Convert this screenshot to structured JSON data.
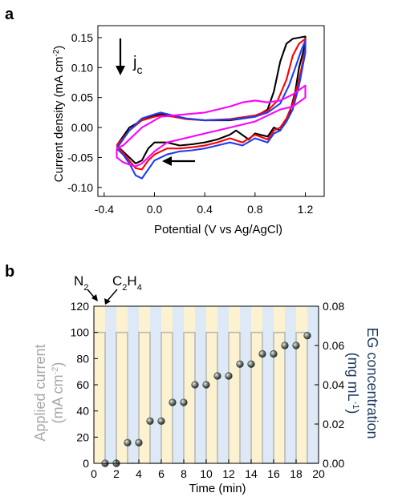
{
  "chart_data": [
    {
      "panel_label": "a",
      "type": "line",
      "xlabel": "Potential (V vs Ag/AgCl)",
      "ylabel": "Current density (mA cm",
      "ylabel_sup": "-2",
      "ylabel_close": ")",
      "xlim": [
        -0.45,
        1.35
      ],
      "ylim": [
        -0.115,
        0.17
      ],
      "xticks": [
        -0.4,
        0.0,
        0.4,
        0.8,
        1.2
      ],
      "xtick_labels": [
        "-0.4",
        "0.0",
        "0.4",
        "0.8",
        "1.2"
      ],
      "yticks": [
        -0.1,
        -0.05,
        0.0,
        0.05,
        0.1,
        0.15
      ],
      "ytick_labels": [
        "-0.10",
        "-0.05",
        "0.00",
        "0.05",
        "0.10",
        "0.15"
      ],
      "annotation_jc": "j",
      "annotation_jc_sub": "c",
      "series": [
        {
          "color": "#000000",
          "points": [
            [
              -0.3,
              -0.03
            ],
            [
              -0.25,
              -0.015
            ],
            [
              -0.2,
              0.0
            ],
            [
              -0.1,
              0.012
            ],
            [
              0.0,
              0.02
            ],
            [
              0.05,
              0.022
            ],
            [
              0.15,
              0.02
            ],
            [
              0.25,
              0.015
            ],
            [
              0.4,
              0.012
            ],
            [
              0.6,
              0.012
            ],
            [
              0.8,
              0.018
            ],
            [
              0.9,
              0.03
            ],
            [
              0.95,
              0.06
            ],
            [
              1.0,
              0.11
            ],
            [
              1.05,
              0.14
            ],
            [
              1.1,
              0.148
            ],
            [
              1.2,
              0.152
            ],
            [
              1.2,
              0.14
            ],
            [
              1.15,
              0.1
            ],
            [
              1.12,
              0.06
            ],
            [
              1.07,
              0.02
            ],
            [
              1.0,
              -0.005
            ],
            [
              0.95,
              0.0
            ],
            [
              0.9,
              -0.015
            ],
            [
              0.8,
              -0.01
            ],
            [
              0.75,
              -0.02
            ],
            [
              0.65,
              -0.005
            ],
            [
              0.6,
              -0.012
            ],
            [
              0.5,
              -0.02
            ],
            [
              0.4,
              -0.025
            ],
            [
              0.3,
              -0.028
            ],
            [
              0.2,
              -0.03
            ],
            [
              0.1,
              -0.025
            ],
            [
              0.0,
              -0.025
            ],
            [
              -0.05,
              -0.035
            ],
            [
              -0.1,
              -0.055
            ],
            [
              -0.15,
              -0.06
            ],
            [
              -0.2,
              -0.05
            ],
            [
              -0.25,
              -0.04
            ],
            [
              -0.3,
              -0.03
            ]
          ]
        },
        {
          "color": "#ff0000",
          "points": [
            [
              -0.3,
              -0.03
            ],
            [
              -0.25,
              -0.018
            ],
            [
              -0.2,
              -0.005
            ],
            [
              -0.1,
              0.012
            ],
            [
              0.0,
              0.018
            ],
            [
              0.05,
              0.02
            ],
            [
              0.15,
              0.018
            ],
            [
              0.25,
              0.014
            ],
            [
              0.4,
              0.012
            ],
            [
              0.6,
              0.014
            ],
            [
              0.8,
              0.02
            ],
            [
              0.9,
              0.028
            ],
            [
              0.98,
              0.045
            ],
            [
              1.05,
              0.08
            ],
            [
              1.1,
              0.12
            ],
            [
              1.15,
              0.14
            ],
            [
              1.2,
              0.148
            ],
            [
              1.2,
              0.13
            ],
            [
              1.15,
              0.08
            ],
            [
              1.1,
              0.04
            ],
            [
              1.05,
              0.015
            ],
            [
              1.0,
              0.0
            ],
            [
              0.95,
              -0.005
            ],
            [
              0.9,
              -0.02
            ],
            [
              0.8,
              -0.012
            ],
            [
              0.7,
              -0.025
            ],
            [
              0.6,
              -0.018
            ],
            [
              0.5,
              -0.025
            ],
            [
              0.4,
              -0.03
            ],
            [
              0.3,
              -0.033
            ],
            [
              0.2,
              -0.035
            ],
            [
              0.1,
              -0.035
            ],
            [
              0.0,
              -0.045
            ],
            [
              -0.05,
              -0.055
            ],
            [
              -0.1,
              -0.07
            ],
            [
              -0.15,
              -0.068
            ],
            [
              -0.2,
              -0.055
            ],
            [
              -0.25,
              -0.042
            ],
            [
              -0.3,
              -0.03
            ]
          ]
        },
        {
          "color": "#1f3df2",
          "points": [
            [
              -0.3,
              -0.035
            ],
            [
              -0.25,
              -0.02
            ],
            [
              -0.2,
              -0.005
            ],
            [
              -0.1,
              0.015
            ],
            [
              0.0,
              0.022
            ],
            [
              0.05,
              0.025
            ],
            [
              0.15,
              0.02
            ],
            [
              0.25,
              0.015
            ],
            [
              0.4,
              0.012
            ],
            [
              0.6,
              0.013
            ],
            [
              0.8,
              0.018
            ],
            [
              0.9,
              0.025
            ],
            [
              1.0,
              0.04
            ],
            [
              1.07,
              0.07
            ],
            [
              1.12,
              0.1
            ],
            [
              1.17,
              0.13
            ],
            [
              1.2,
              0.145
            ],
            [
              1.2,
              0.125
            ],
            [
              1.15,
              0.07
            ],
            [
              1.1,
              0.03
            ],
            [
              1.05,
              0.01
            ],
            [
              1.0,
              -0.005
            ],
            [
              0.95,
              -0.01
            ],
            [
              0.9,
              -0.025
            ],
            [
              0.8,
              -0.018
            ],
            [
              0.7,
              -0.03
            ],
            [
              0.6,
              -0.025
            ],
            [
              0.5,
              -0.03
            ],
            [
              0.4,
              -0.035
            ],
            [
              0.3,
              -0.038
            ],
            [
              0.2,
              -0.04
            ],
            [
              0.1,
              -0.045
            ],
            [
              0.0,
              -0.055
            ],
            [
              -0.05,
              -0.07
            ],
            [
              -0.1,
              -0.085
            ],
            [
              -0.15,
              -0.08
            ],
            [
              -0.2,
              -0.06
            ],
            [
              -0.25,
              -0.045
            ],
            [
              -0.3,
              -0.035
            ]
          ]
        },
        {
          "color": "#ff00ff",
          "points": [
            [
              -0.3,
              -0.035
            ],
            [
              -0.25,
              -0.03
            ],
            [
              -0.2,
              -0.02
            ],
            [
              -0.1,
              0.0
            ],
            [
              0.0,
              0.012
            ],
            [
              0.05,
              0.018
            ],
            [
              0.15,
              0.02
            ],
            [
              0.25,
              0.022
            ],
            [
              0.4,
              0.025
            ],
            [
              0.6,
              0.035
            ],
            [
              0.7,
              0.042
            ],
            [
              0.8,
              0.045
            ],
            [
              0.9,
              0.042
            ],
            [
              1.0,
              0.045
            ],
            [
              1.1,
              0.055
            ],
            [
              1.2,
              0.07
            ],
            [
              1.2,
              0.05
            ],
            [
              1.1,
              0.035
            ],
            [
              1.0,
              0.03
            ],
            [
              0.9,
              0.02
            ],
            [
              0.8,
              0.01
            ],
            [
              0.6,
              0.0
            ],
            [
              0.4,
              -0.01
            ],
            [
              0.2,
              -0.02
            ],
            [
              0.1,
              -0.025
            ],
            [
              0.0,
              -0.04
            ],
            [
              -0.05,
              -0.05
            ],
            [
              -0.1,
              -0.06
            ],
            [
              -0.15,
              -0.065
            ],
            [
              -0.2,
              -0.062
            ],
            [
              -0.25,
              -0.058
            ],
            [
              -0.3,
              -0.05
            ],
            [
              -0.3,
              -0.035
            ]
          ]
        }
      ]
    },
    {
      "panel_label": "b",
      "type": "scatter",
      "xlabel": "Time (min)",
      "ylabel_left_line1": "Applied current",
      "ylabel_left_line2": "(mA cm",
      "ylabel_left_sup": "-2",
      "ylabel_left_close": ")",
      "ylabel_right_line1": "EG concentration",
      "ylabel_right_line2": "(mg mL",
      "ylabel_right_sup": "-1",
      "ylabel_right_close": ")",
      "xlim": [
        0,
        20
      ],
      "ylim_left": [
        0,
        120
      ],
      "ylim_right": [
        0,
        0.08
      ],
      "xticks": [
        0,
        2,
        4,
        6,
        8,
        10,
        12,
        14,
        16,
        18,
        20
      ],
      "yticks_left": [
        0,
        20,
        40,
        60,
        80,
        100,
        120
      ],
      "yticks_right_labels": [
        "0.00",
        "0.02",
        "0.04",
        "0.06",
        "0.08"
      ],
      "yticks_right": [
        0.0,
        0.02,
        0.04,
        0.06,
        0.08
      ],
      "annotations": [
        {
          "text": "N",
          "sub": "2",
          "text2": ""
        },
        {
          "text": "C",
          "sub": "2",
          "text2": "H",
          "sub2": "4"
        }
      ],
      "applied_current_mA_cm2": 100,
      "interval_min": 1,
      "band_colors": {
        "n2": "#fdf2cf",
        "c2h4": "#dde9f6"
      },
      "current_color": "#b8b8b8",
      "eg_points_x": [
        1,
        2,
        3,
        4,
        5,
        6,
        7,
        8,
        9,
        10,
        11,
        12,
        13,
        14,
        15,
        16,
        17,
        18,
        19
      ],
      "eg_points_y": [
        0.0,
        0.0,
        0.0105,
        0.0105,
        0.0215,
        0.0215,
        0.031,
        0.031,
        0.04,
        0.04,
        0.0445,
        0.0445,
        0.0505,
        0.0505,
        0.0557,
        0.0557,
        0.06,
        0.06,
        0.065
      ]
    }
  ]
}
